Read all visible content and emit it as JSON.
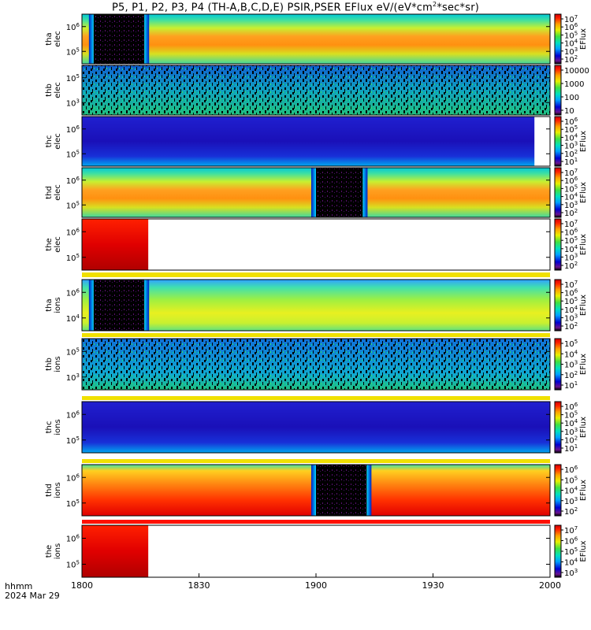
{
  "chart_data": {
    "type": "heatmap",
    "title": {
      "prefix": "P5, P1, P2, P3, P4 (TH-A,B,C,D,E) PSIR,PSER EFlux eV/(eV*cm",
      "sup": "2",
      "suffix": "*sec*sr)"
    },
    "x_axis": {
      "label_line1": "hhmm",
      "label_line2": "2024 Mar 29",
      "ticks": [
        "1800",
        "1830",
        "1900",
        "1930",
        "2000"
      ],
      "tick_minutes": [
        0,
        30,
        60,
        90,
        120
      ],
      "range_minutes": [
        0,
        120
      ]
    },
    "colorbar_label": "EFlux",
    "panels": [
      {
        "probe": "tha",
        "species": "elec",
        "ylabel": [
          "tha",
          "elec"
        ],
        "yticks": [
          {
            "base": "10",
            "exp": "5",
            "frac": 0.25
          },
          {
            "base": "10",
            "exp": "6",
            "frac": 0.75
          }
        ],
        "colorbar_ticks": [
          {
            "t": "10",
            "e": "7"
          },
          {
            "t": "10",
            "e": "6"
          },
          {
            "t": "10",
            "e": "5"
          },
          {
            "t": "10",
            "e": "4"
          },
          {
            "t": "10",
            "e": "3"
          },
          {
            "t": "10",
            "e": "2"
          }
        ],
        "colorbar_label": "EFlux",
        "data_extent": [
          0,
          120
        ],
        "shadow_intervals": [
          [
            3,
            16
          ]
        ],
        "pattern": "smooth"
      },
      {
        "probe": "thb",
        "species": "elec",
        "ylabel": [
          "thb",
          "elec"
        ],
        "yticks": [
          {
            "base": "10",
            "exp": "3",
            "frac": 0.25
          },
          {
            "base": "10",
            "exp": "5",
            "frac": 0.75
          }
        ],
        "colorbar_ticks": [
          {
            "t": "10000"
          },
          {
            "t": "1000"
          },
          {
            "t": "100"
          },
          {
            "t": "10"
          }
        ],
        "colorbar_label": "",
        "data_extent": [
          0,
          120
        ],
        "shadow_intervals": [],
        "pattern": "noise"
      },
      {
        "probe": "thc",
        "species": "elec",
        "ylabel": [
          "thc",
          "elec"
        ],
        "yticks": [
          {
            "base": "10",
            "exp": "5",
            "frac": 0.25
          },
          {
            "base": "10",
            "exp": "6",
            "frac": 0.75
          }
        ],
        "colorbar_ticks": [
          {
            "t": "10",
            "e": "6"
          },
          {
            "t": "10",
            "e": "5"
          },
          {
            "t": "10",
            "e": "4"
          },
          {
            "t": "10",
            "e": "3"
          },
          {
            "t": "10",
            "e": "2"
          },
          {
            "t": "10",
            "e": "1"
          }
        ],
        "colorbar_label": "EFlux",
        "data_extent": [
          0,
          116
        ],
        "shadow_intervals": [],
        "pattern": "blue"
      },
      {
        "probe": "thd",
        "species": "elec",
        "ylabel": [
          "thd",
          "elec"
        ],
        "yticks": [
          {
            "base": "10",
            "exp": "5",
            "frac": 0.25
          },
          {
            "base": "10",
            "exp": "6",
            "frac": 0.75
          }
        ],
        "colorbar_ticks": [
          {
            "t": "10",
            "e": "7"
          },
          {
            "t": "10",
            "e": "6"
          },
          {
            "t": "10",
            "e": "5"
          },
          {
            "t": "10",
            "e": "4"
          },
          {
            "t": "10",
            "e": "3"
          },
          {
            "t": "10",
            "e": "2"
          }
        ],
        "colorbar_label": "EFlux",
        "data_extent": [
          0,
          120
        ],
        "shadow_intervals": [
          [
            60,
            72
          ]
        ],
        "pattern": "smooth"
      },
      {
        "probe": "the",
        "species": "elec",
        "ylabel": [
          "the",
          "elec"
        ],
        "yticks": [
          {
            "base": "10",
            "exp": "5",
            "frac": 0.25
          },
          {
            "base": "10",
            "exp": "6",
            "frac": 0.75
          }
        ],
        "colorbar_ticks": [
          {
            "t": "10",
            "e": "7"
          },
          {
            "t": "10",
            "e": "6"
          },
          {
            "t": "10",
            "e": "5"
          },
          {
            "t": "10",
            "e": "4"
          },
          {
            "t": "10",
            "e": "3"
          },
          {
            "t": "10",
            "e": "2"
          }
        ],
        "colorbar_label": "EFlux",
        "data_extent": [
          0,
          17
        ],
        "shadow_intervals": [],
        "pattern": "red"
      },
      {
        "probe": "tha",
        "species": "ions",
        "ylabel": [
          "tha",
          "ions"
        ],
        "yticks": [
          {
            "base": "10",
            "exp": "4",
            "frac": 0.25
          },
          {
            "base": "10",
            "exp": "6",
            "frac": 0.75
          }
        ],
        "colorbar_ticks": [
          {
            "t": "10",
            "e": "7"
          },
          {
            "t": "10",
            "e": "6"
          },
          {
            "t": "10",
            "e": "5"
          },
          {
            "t": "10",
            "e": "4"
          },
          {
            "t": "10",
            "e": "3"
          },
          {
            "t": "10",
            "e": "2"
          }
        ],
        "colorbar_label": "EFlux",
        "data_extent": [
          0,
          120
        ],
        "shadow_intervals": [
          [
            3,
            16
          ]
        ],
        "pattern": "smooth-ion"
      },
      {
        "probe": "thb",
        "species": "ions",
        "ylabel": [
          "thb",
          "ions"
        ],
        "yticks": [
          {
            "base": "10",
            "exp": "3",
            "frac": 0.25
          },
          {
            "base": "10",
            "exp": "5",
            "frac": 0.75
          }
        ],
        "colorbar_ticks": [
          {
            "t": "10",
            "e": "5"
          },
          {
            "t": "10",
            "e": "4"
          },
          {
            "t": "10",
            "e": "3"
          },
          {
            "t": "10",
            "e": "2"
          },
          {
            "t": "10",
            "e": "1"
          }
        ],
        "colorbar_label": "EFlux",
        "data_extent": [
          0,
          120
        ],
        "shadow_intervals": [],
        "pattern": "noise-ion"
      },
      {
        "probe": "thc",
        "species": "ions",
        "ylabel": [
          "thc",
          "ions"
        ],
        "yticks": [
          {
            "base": "10",
            "exp": "5",
            "frac": 0.25
          },
          {
            "base": "10",
            "exp": "6",
            "frac": 0.75
          }
        ],
        "colorbar_ticks": [
          {
            "t": "10",
            "e": "6"
          },
          {
            "t": "10",
            "e": "5"
          },
          {
            "t": "10",
            "e": "4"
          },
          {
            "t": "10",
            "e": "3"
          },
          {
            "t": "10",
            "e": "2"
          },
          {
            "t": "10",
            "e": "1"
          }
        ],
        "colorbar_label": "EFlux",
        "data_extent": [
          0,
          120
        ],
        "shadow_intervals": [],
        "pattern": "blue"
      },
      {
        "probe": "thd",
        "species": "ions",
        "ylabel": [
          "thd",
          "ions"
        ],
        "yticks": [
          {
            "base": "10",
            "exp": "5",
            "frac": 0.25
          },
          {
            "base": "10",
            "exp": "6",
            "frac": 0.75
          }
        ],
        "colorbar_ticks": [
          {
            "t": "10",
            "e": "6"
          },
          {
            "t": "10",
            "e": "5"
          },
          {
            "t": "10",
            "e": "4"
          },
          {
            "t": "10",
            "e": "3"
          },
          {
            "t": "10",
            "e": "2"
          }
        ],
        "colorbar_label": "EFlux",
        "data_extent": [
          0,
          120
        ],
        "shadow_intervals": [
          [
            60,
            73
          ]
        ],
        "pattern": "hot"
      },
      {
        "probe": "the",
        "species": "ions",
        "ylabel": [
          "the",
          "ions"
        ],
        "yticks": [
          {
            "base": "10",
            "exp": "5",
            "frac": 0.25
          },
          {
            "base": "10",
            "exp": "6",
            "frac": 0.75
          }
        ],
        "colorbar_ticks": [
          {
            "t": "10",
            "e": "7"
          },
          {
            "t": "10",
            "e": "6"
          },
          {
            "t": "10",
            "e": "5"
          },
          {
            "t": "10",
            "e": "4"
          },
          {
            "t": "10",
            "e": "3"
          }
        ],
        "colorbar_label": "EFlux",
        "data_extent": [
          0,
          17
        ],
        "shadow_intervals": [],
        "pattern": "red"
      }
    ]
  }
}
